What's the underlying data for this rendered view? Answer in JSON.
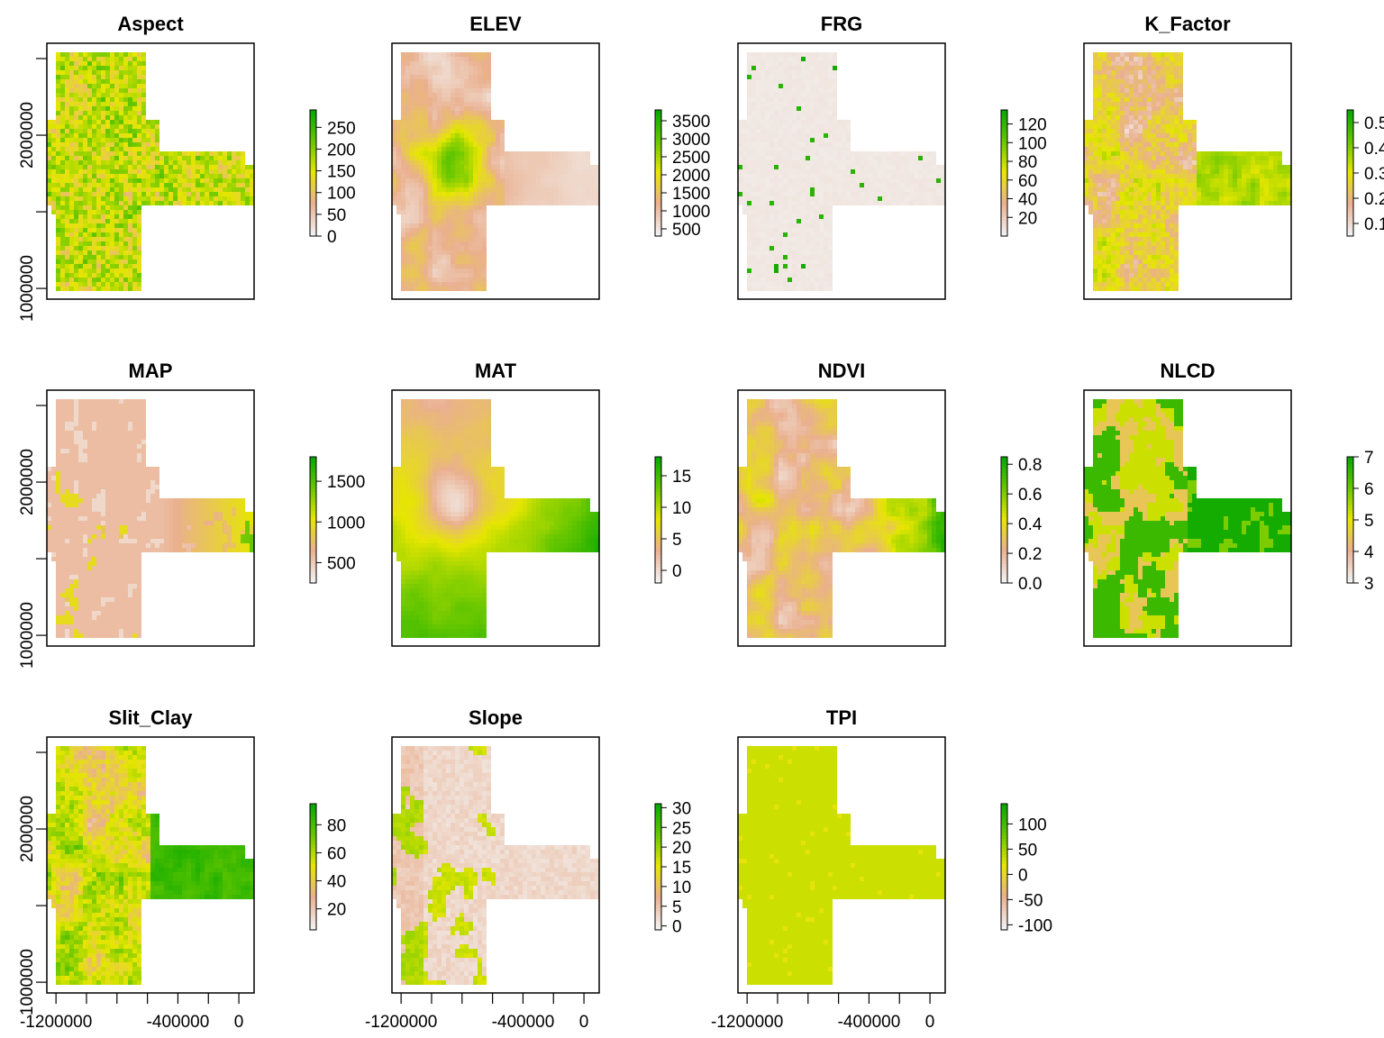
{
  "figure": {
    "colors": {
      "low": "#f2f2f2",
      "ramp": [
        "#f2f2f2",
        "#eab08f",
        "#e6e600",
        "#63c600",
        "#00a600"
      ]
    },
    "x_axis_ticks": [
      "-1200000",
      "-400000",
      "0"
    ],
    "x_axis_tick_values": [
      -1200000,
      -400000,
      0
    ],
    "x_minor_tick_values": [
      -1200000,
      -1000000,
      -800000,
      -600000,
      -400000,
      -200000,
      0
    ],
    "y_axis_ticks": [
      "1000000",
      "2000000"
    ],
    "y_axis_tick_values": [
      1000000,
      2000000
    ],
    "y_minor_tick_values": [
      1000000,
      1500000,
      2000000,
      2500000
    ],
    "xlim": [
      -1260000,
      100000
    ],
    "ylim": [
      930000,
      2600000
    ]
  },
  "chart_data": [
    {
      "type": "heatmap",
      "title": "Aspect",
      "legend_ticks": [
        "0",
        "50",
        "100",
        "150",
        "200",
        "250"
      ],
      "legend_values": [
        0,
        50,
        100,
        150,
        200,
        250
      ],
      "range": [
        0,
        290
      ],
      "pattern": "aspect"
    },
    {
      "type": "heatmap",
      "title": "ELEV",
      "legend_ticks": [
        "500",
        "1000",
        "1500",
        "2000",
        "2500",
        "3000",
        "3500"
      ],
      "legend_values": [
        500,
        1000,
        1500,
        2000,
        2500,
        3000,
        3500
      ],
      "range": [
        300,
        3800
      ],
      "pattern": "elev"
    },
    {
      "type": "heatmap",
      "title": "FRG",
      "legend_ticks": [
        "20",
        "40",
        "60",
        "80",
        "100",
        "120"
      ],
      "legend_values": [
        20,
        40,
        60,
        80,
        100,
        120
      ],
      "range": [
        0,
        135
      ],
      "pattern": "frg"
    },
    {
      "type": "heatmap",
      "title": "K_Factor",
      "legend_ticks": [
        "0.1",
        "0.2",
        "0.3",
        "0.4",
        "0.5"
      ],
      "legend_values": [
        0.1,
        0.2,
        0.3,
        0.4,
        0.5
      ],
      "range": [
        0.05,
        0.55
      ],
      "pattern": "kfactor"
    },
    {
      "type": "heatmap",
      "title": "MAP",
      "legend_ticks": [
        "500",
        "1000",
        "1500"
      ],
      "legend_values": [
        500,
        1000,
        1500
      ],
      "range": [
        250,
        1800
      ],
      "pattern": "map"
    },
    {
      "type": "heatmap",
      "title": "MAT",
      "legend_ticks": [
        "0",
        "5",
        "10",
        "15"
      ],
      "legend_values": [
        0,
        5,
        10,
        15
      ],
      "range": [
        -2,
        18
      ],
      "pattern": "mat"
    },
    {
      "type": "heatmap",
      "title": "NDVI",
      "legend_ticks": [
        "0.0",
        "0.2",
        "0.4",
        "0.6",
        "0.8"
      ],
      "legend_values": [
        0,
        0.2,
        0.4,
        0.6,
        0.8
      ],
      "range": [
        0,
        0.85
      ],
      "pattern": "ndvi"
    },
    {
      "type": "heatmap",
      "title": "NLCD",
      "legend_ticks": [
        "3",
        "4",
        "5",
        "6",
        "7"
      ],
      "legend_values": [
        3,
        4,
        5,
        6,
        7
      ],
      "range": [
        3,
        7
      ],
      "pattern": "nlcd"
    },
    {
      "type": "heatmap",
      "title": "Slit_Clay",
      "legend_ticks": [
        "20",
        "40",
        "60",
        "80"
      ],
      "legend_values": [
        20,
        40,
        60,
        80
      ],
      "range": [
        5,
        95
      ],
      "pattern": "clay"
    },
    {
      "type": "heatmap",
      "title": "Slope",
      "legend_ticks": [
        "0",
        "5",
        "10",
        "15",
        "20",
        "25",
        "30"
      ],
      "legend_values": [
        0,
        5,
        10,
        15,
        20,
        25,
        30
      ],
      "range": [
        -1,
        31
      ],
      "pattern": "slope"
    },
    {
      "type": "heatmap",
      "title": "TPI",
      "legend_ticks": [
        "-100",
        "-50",
        "0",
        "50",
        "100"
      ],
      "legend_values": [
        -100,
        -50,
        0,
        50,
        100
      ],
      "range": [
        -110,
        140
      ],
      "pattern": "tpi"
    }
  ]
}
